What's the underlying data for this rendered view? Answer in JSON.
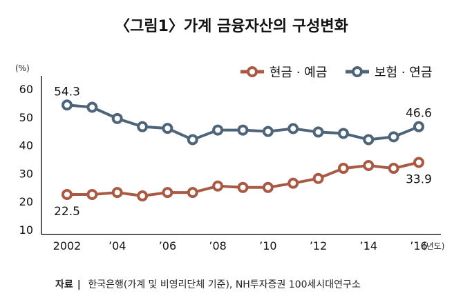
{
  "title": "〈그림1〉가계 금융자산의 구성변화",
  "source": {
    "label": "자료",
    "sep": "|",
    "text": "한국은행(가계 및 비영리단체 기준), NH투자증권 100세시대연구소"
  },
  "chart_data": {
    "type": "line",
    "title": "〈그림1〉가계 금융자산의 구성변화",
    "ylabel": "(%)",
    "xunit": "(년도)",
    "ylim": [
      10,
      60
    ],
    "yticks": [
      10,
      20,
      30,
      40,
      50,
      60
    ],
    "x": [
      2002,
      2003,
      2004,
      2005,
      2006,
      2007,
      2008,
      2009,
      2010,
      2011,
      2012,
      2013,
      2014,
      2015,
      2016
    ],
    "xticks": [
      {
        "x": 2002,
        "label": "2002"
      },
      {
        "x": 2004,
        "label": "’04"
      },
      {
        "x": 2006,
        "label": "’06"
      },
      {
        "x": 2008,
        "label": "’08"
      },
      {
        "x": 2010,
        "label": "’10"
      },
      {
        "x": 2012,
        "label": "’12"
      },
      {
        "x": 2014,
        "label": "’14"
      },
      {
        "x": 2016,
        "label": "’16"
      }
    ],
    "legend": "top-right",
    "grid": false,
    "series": [
      {
        "name": "현금 · 예금",
        "color": "#a85a44",
        "values": [
          22.5,
          22.5,
          23.2,
          22.0,
          23.2,
          23.2,
          25.5,
          25.0,
          25.0,
          26.5,
          28.2,
          31.8,
          32.8,
          31.8,
          33.9
        ],
        "labels": [
          {
            "index": 0,
            "text": "22.5",
            "pos": "below"
          },
          {
            "index": 14,
            "text": "33.9",
            "pos": "below"
          }
        ]
      },
      {
        "name": "보험 · 연금",
        "color": "#4e6478",
        "values": [
          54.3,
          53.5,
          49.5,
          46.6,
          46.0,
          42.0,
          45.4,
          45.4,
          44.9,
          45.9,
          44.7,
          44.2,
          42.0,
          43.0,
          46.6
        ],
        "labels": [
          {
            "index": 0,
            "text": "54.3",
            "pos": "above"
          },
          {
            "index": 14,
            "text": "46.6",
            "pos": "above"
          }
        ]
      }
    ]
  }
}
